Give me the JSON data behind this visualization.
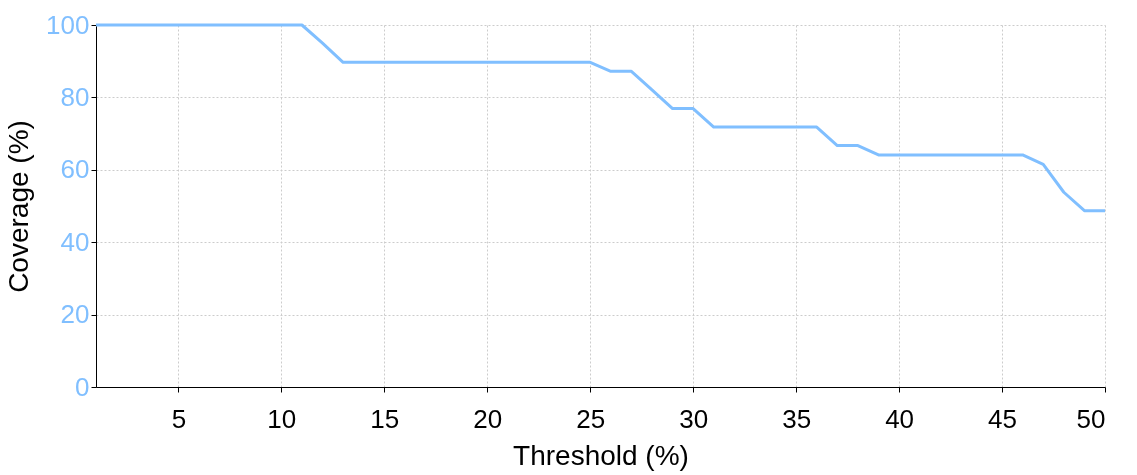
{
  "chart_data": {
    "type": "line",
    "xlabel": "Threshold (%)",
    "ylabel": "Coverage (%)",
    "x": [
      1,
      2,
      3,
      4,
      5,
      6,
      7,
      8,
      9,
      10,
      11,
      12,
      13,
      14,
      15,
      16,
      17,
      18,
      19,
      20,
      21,
      22,
      23,
      24,
      25,
      26,
      27,
      28,
      29,
      30,
      31,
      32,
      33,
      34,
      35,
      36,
      37,
      38,
      39,
      40,
      41,
      42,
      43,
      44,
      45,
      46,
      47,
      48,
      49,
      50
    ],
    "series": [
      {
        "color": "#80bfff",
        "values": [
          100,
          100,
          100,
          100,
          100,
          100,
          100,
          100,
          100,
          100,
          100,
          95,
          89.7,
          89.7,
          89.7,
          89.7,
          89.7,
          89.7,
          89.7,
          89.7,
          89.7,
          89.7,
          89.7,
          89.7,
          89.7,
          87.2,
          87.2,
          82.1,
          76.9,
          76.9,
          71.8,
          71.8,
          71.8,
          71.8,
          71.8,
          71.8,
          66.7,
          66.7,
          64.1,
          64.1,
          64.1,
          64.1,
          64.1,
          64.1,
          64.1,
          64.1,
          61.5,
          53.8,
          48.7,
          48.7
        ]
      }
    ],
    "xlim": [
      1,
      50
    ],
    "xticks": [
      5,
      10,
      15,
      20,
      25,
      30,
      35,
      40,
      45,
      50
    ],
    "ylim": [
      0,
      100
    ],
    "yticks": [
      0,
      20,
      40,
      60,
      80,
      100
    ],
    "grid": true,
    "line_style": "solid",
    "marker": "none"
  }
}
